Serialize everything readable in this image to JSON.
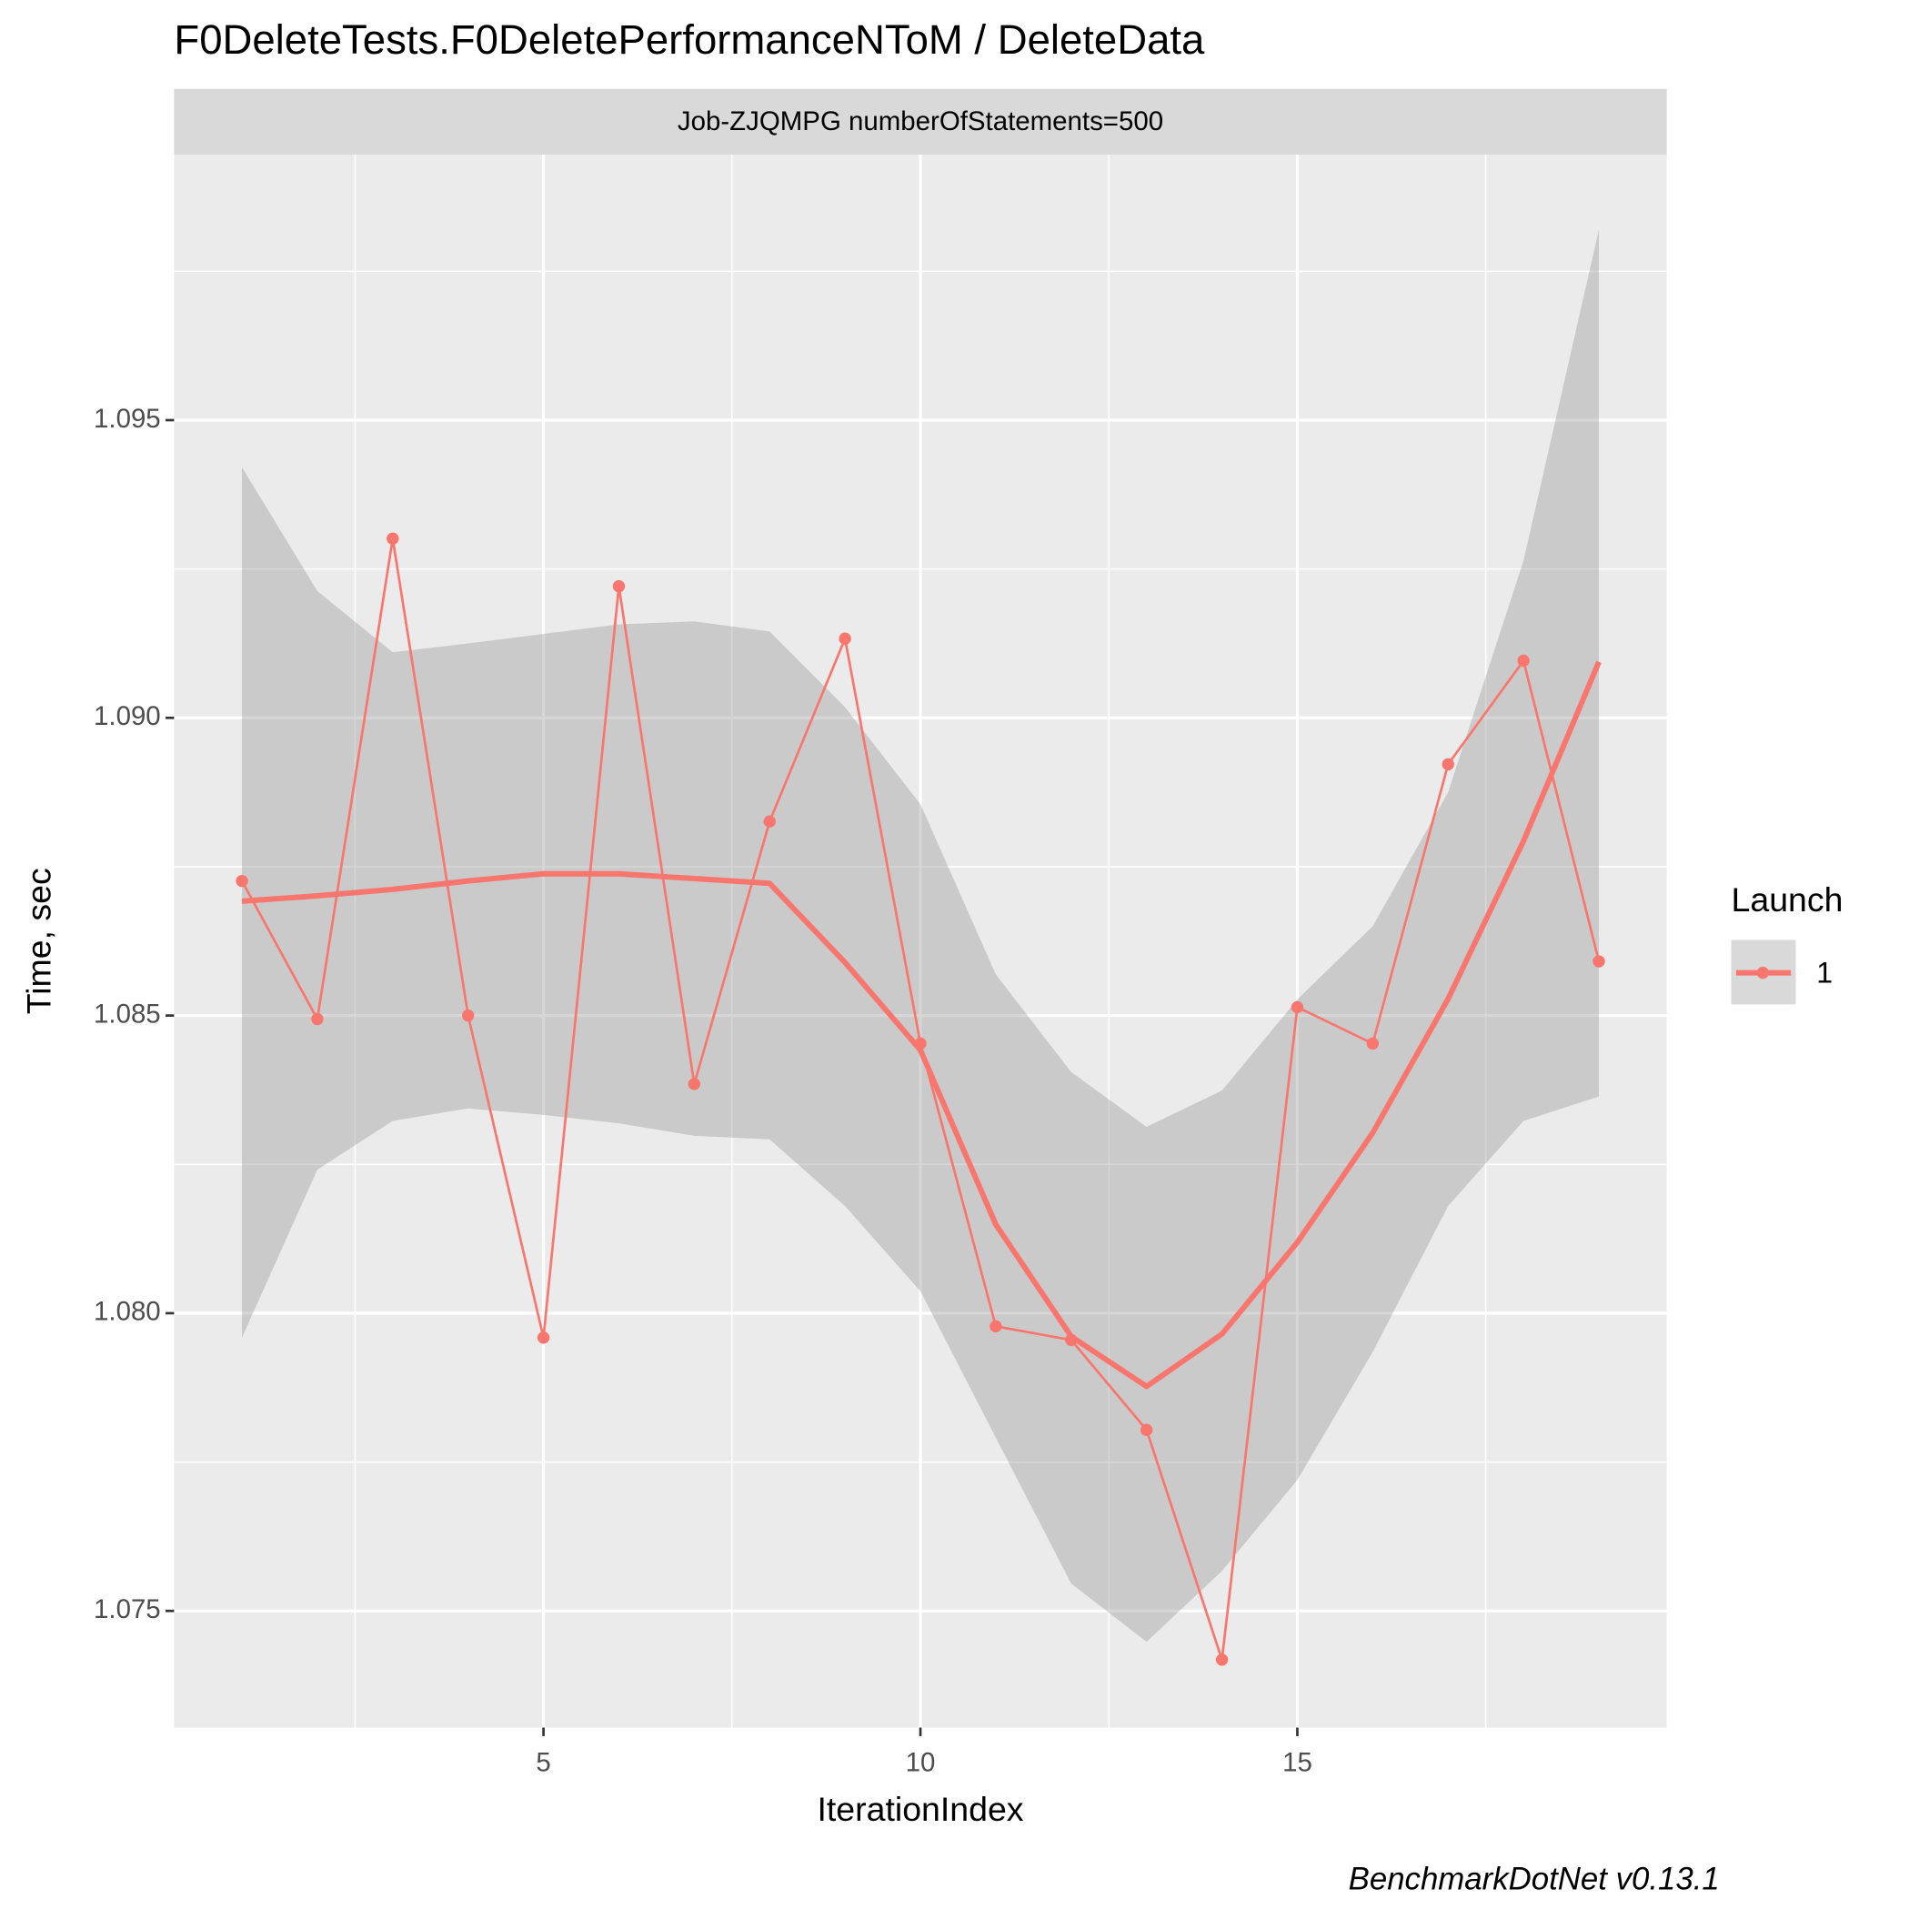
{
  "chart_data": {
    "type": "line",
    "title": "F0DeleteTests.F0DeletePerformanceNToM / DeleteData",
    "facet_label": "Job-ZJQMPG numberOfStatements=500",
    "x_label": "IterationIndex",
    "y_label": "Time, sec",
    "legend_title": "Launch",
    "caption": "BenchmarkDotNet v0.13.1",
    "x": [
      1,
      2,
      3,
      4,
      5,
      6,
      7,
      8,
      9,
      10,
      11,
      12,
      13,
      14,
      15,
      16,
      17,
      18,
      19
    ],
    "series": [
      {
        "name": "1",
        "color": "#F8766D",
        "values": [
          1.08726,
          1.08494,
          1.09301,
          1.085,
          1.07959,
          1.09221,
          1.08385,
          1.08826,
          1.09133,
          1.08453,
          1.07978,
          1.07955,
          1.07804,
          1.07418,
          1.08514,
          1.08453,
          1.08922,
          1.09096,
          1.08591
        ],
        "smooth": [
          1.08692,
          1.08701,
          1.08712,
          1.08726,
          1.08738,
          1.08738,
          1.0873,
          1.08722,
          1.08589,
          1.08442,
          1.08149,
          1.07961,
          1.07877,
          1.07965,
          1.08119,
          1.08303,
          1.08528,
          1.08793,
          1.09094
        ],
        "smooth_upper": [
          1.09421,
          1.09213,
          1.0911,
          1.09125,
          1.09141,
          1.09157,
          1.09162,
          1.09145,
          1.09018,
          1.08855,
          1.08569,
          1.08405,
          1.08313,
          1.08374,
          1.08527,
          1.0865,
          1.08875,
          1.09264,
          1.0982
        ],
        "smooth_lower": [
          1.07959,
          1.08241,
          1.08323,
          1.08344,
          1.08333,
          1.08319,
          1.08298,
          1.08292,
          1.0818,
          1.08037,
          1.07791,
          1.07546,
          1.07448,
          1.07567,
          1.0772,
          1.07935,
          1.0818,
          1.08323,
          1.08364
        ]
      }
    ],
    "band_color": "#999999",
    "xlim": [
      0.1,
      19.9
    ],
    "ylim": [
      1.07304,
      1.09946
    ],
    "xticks": [
      5,
      10,
      15
    ],
    "yticks": [
      1.075,
      {
        "value": 1.08,
        "label": "1.080"
      },
      1.085,
      {
        "value": 1.09,
        "label": "1.090"
      },
      1.095
    ],
    "x_minor_grid": [
      2.5,
      7.5,
      12.5,
      17.5
    ],
    "y_minor_grid": [
      1.0775,
      1.0825,
      1.0875,
      1.0925,
      1.0975
    ],
    "grid": true
  }
}
